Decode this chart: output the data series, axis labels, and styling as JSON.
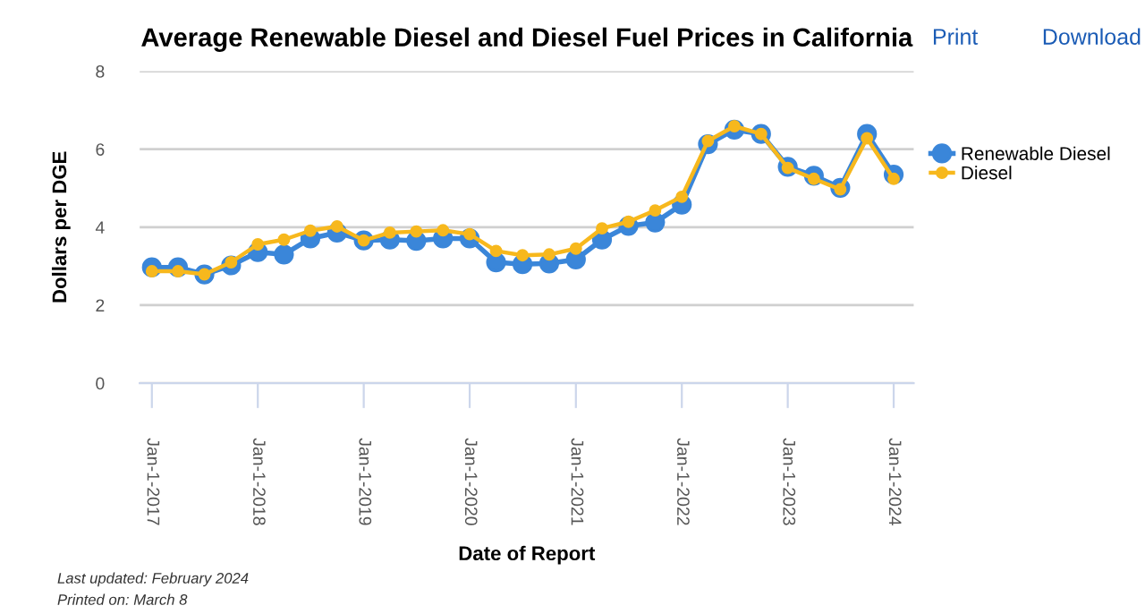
{
  "chart_data": {
    "type": "line",
    "title": "Average Renewable Diesel and Diesel Fuel Prices in California",
    "xlabel": "Date of Report",
    "ylabel": "Dollars per DGE",
    "x": [
      "2017-01",
      "2017-04",
      "2017-07",
      "2017-10",
      "2018-01",
      "2018-04",
      "2018-07",
      "2018-10",
      "2019-01",
      "2019-04",
      "2019-07",
      "2019-10",
      "2020-01",
      "2020-04",
      "2020-07",
      "2020-10",
      "2021-01",
      "2021-04",
      "2021-07",
      "2021-10",
      "2022-01",
      "2022-04",
      "2022-07",
      "2022-10",
      "2023-01",
      "2023-04",
      "2023-07",
      "2023-10",
      "2024-01"
    ],
    "series": [
      {
        "name": "Renewable Diesel",
        "color": "#3a86d9",
        "values": [
          2.97,
          2.97,
          2.79,
          3.02,
          3.36,
          3.3,
          3.71,
          3.86,
          3.66,
          3.68,
          3.65,
          3.71,
          3.71,
          3.1,
          3.05,
          3.07,
          3.17,
          3.68,
          4.03,
          4.12,
          4.58,
          6.13,
          6.5,
          6.39,
          5.55,
          5.32,
          5.01,
          6.39,
          5.35
        ]
      },
      {
        "name": "Diesel",
        "color": "#f7b81d",
        "values": [
          2.87,
          2.87,
          2.79,
          3.1,
          3.56,
          3.68,
          3.91,
          4.02,
          3.66,
          3.86,
          3.89,
          3.92,
          3.82,
          3.39,
          3.28,
          3.3,
          3.45,
          3.97,
          4.14,
          4.43,
          4.78,
          6.21,
          6.59,
          6.39,
          5.52,
          5.24,
          4.97,
          6.28,
          5.24
        ]
      }
    ],
    "xlim": [
      "2016-11-20",
      "2024-03-10"
    ],
    "xticks": [
      {
        "value": "2017-01-01",
        "label": "Jan-1-2017"
      },
      {
        "value": "2018-01-01",
        "label": "Jan-1-2018"
      },
      {
        "value": "2019-01-01",
        "label": "Jan-1-2019"
      },
      {
        "value": "2020-01-01",
        "label": "Jan-1-2020"
      },
      {
        "value": "2021-01-01",
        "label": "Jan-1-2021"
      },
      {
        "value": "2022-01-01",
        "label": "Jan-1-2022"
      },
      {
        "value": "2023-01-01",
        "label": "Jan-1-2023"
      },
      {
        "value": "2024-01-01",
        "label": "Jan-1-2024"
      }
    ],
    "ylim": [
      0,
      8
    ],
    "yticks": [
      0,
      2,
      4,
      6,
      8
    ],
    "grid": "y",
    "legend": "right",
    "marker": "circle",
    "annotations": [
      "Print",
      "Download",
      "Last updated: February 2024",
      "Printed on: March 8"
    ]
  }
}
